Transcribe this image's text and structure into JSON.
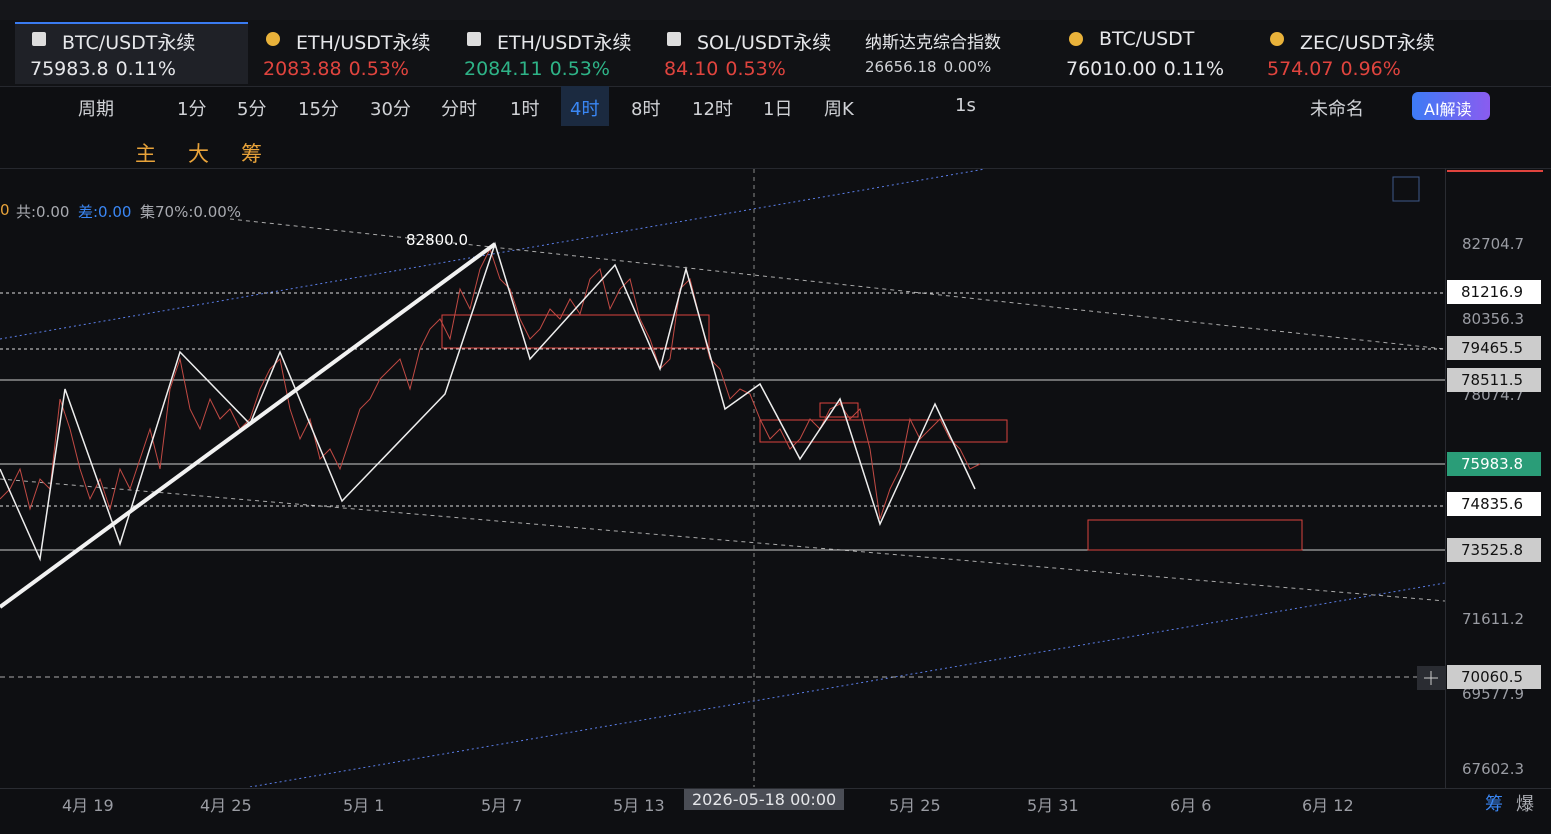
{
  "tabs": [
    {
      "name": "BTC/USDT永续",
      "price": "75983.8",
      "change": "0.11%"
    },
    {
      "name": "ETH/USDT永续",
      "price": "2083.88",
      "change": "0.53%"
    },
    {
      "name": "ETH/USDT永续",
      "price": "2084.11",
      "change": "0.53%"
    },
    {
      "name": "SOL/USDT永续",
      "price": "84.10",
      "change": "0.53%"
    },
    {
      "name": "纳斯达克综合指数",
      "price": "26656.18",
      "change": "0.00%"
    },
    {
      "name": "BTC/USDT",
      "price": "76010.00",
      "change": "0.11%"
    },
    {
      "name": "ZEC/USDT永续",
      "price": "574.07",
      "change": "0.96%"
    }
  ],
  "timeframes": [
    "周期",
    "1分",
    "5分",
    "15分",
    "30分",
    "分时",
    "1时",
    "4时",
    "8时",
    "12时",
    "1日",
    "周K"
  ],
  "toolbar": {
    "interval": "1s",
    "layout": "未命名",
    "ai": "AI解读"
  },
  "indicators": [
    "主",
    "大",
    "筹"
  ],
  "stats": [
    "0",
    "共:0.00",
    "差:0.00",
    "集70%:0.00%"
  ],
  "annotation": "82800.0",
  "price_axis": [
    "82704.7",
    "80356.3",
    "78074.7",
    "71611.2",
    "69577.9",
    "67602.3"
  ],
  "price_tags": [
    "81216.9",
    "79465.5",
    "78511.5",
    "75983.8",
    "74835.6",
    "73525.8",
    "70060.5"
  ],
  "time_axis": [
    "4月 19",
    "4月 25",
    "5月 1",
    "5月 7",
    "5月 13",
    "2026-05-18 00:00",
    "5月 25",
    "5月 31",
    "6月 6",
    "6月 12"
  ],
  "corner": [
    "筹",
    "爆"
  ]
}
